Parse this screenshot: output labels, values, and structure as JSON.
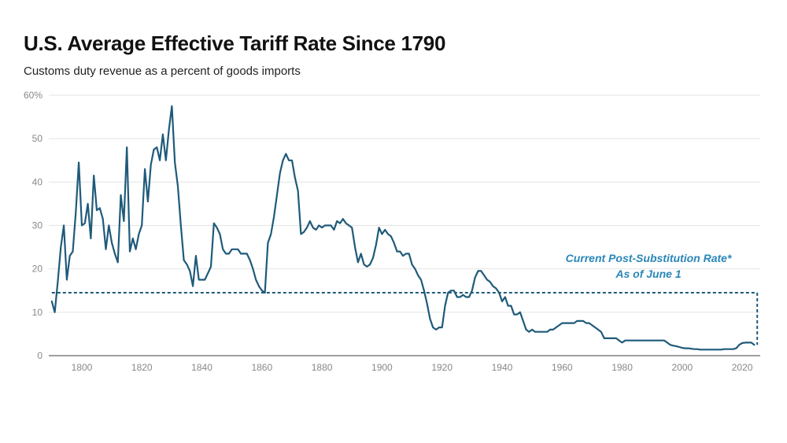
{
  "chart_data": {
    "type": "line",
    "title": "U.S. Average Effective Tariff Rate Since 1790",
    "subtitle": "Customs duty revenue as a percent of goods imports",
    "xlabel": "",
    "ylabel": "",
    "xlim": [
      1789,
      2026
    ],
    "ylim": [
      0,
      60
    ],
    "grid": true,
    "y_ticks": [
      0,
      10,
      20,
      30,
      40,
      50,
      60
    ],
    "y_tick_labels": [
      "0",
      "10",
      "20",
      "30",
      "40",
      "50",
      "60%"
    ],
    "x_ticks": [
      1800,
      1820,
      1840,
      1860,
      1880,
      1900,
      1920,
      1940,
      1960,
      1980,
      2000,
      2020
    ],
    "x_tick_labels": [
      "1800",
      "1820",
      "1840",
      "1860",
      "1880",
      "1900",
      "1920",
      "1940",
      "1960",
      "1980",
      "2000",
      "2020"
    ],
    "series": [
      {
        "name": "Average effective tariff rate",
        "color": "#1f5a7a",
        "points": [
          [
            1790,
            12.5
          ],
          [
            1791,
            10
          ],
          [
            1792,
            17
          ],
          [
            1793,
            25
          ],
          [
            1794,
            30
          ],
          [
            1795,
            17.5
          ],
          [
            1796,
            23
          ],
          [
            1797,
            24
          ],
          [
            1798,
            33
          ],
          [
            1799,
            44.5
          ],
          [
            1800,
            30
          ],
          [
            1801,
            30.5
          ],
          [
            1802,
            35
          ],
          [
            1803,
            27
          ],
          [
            1804,
            41.5
          ],
          [
            1805,
            33.5
          ],
          [
            1806,
            34
          ],
          [
            1807,
            31.5
          ],
          [
            1808,
            24.5
          ],
          [
            1809,
            30
          ],
          [
            1810,
            26
          ],
          [
            1811,
            23.5
          ],
          [
            1812,
            21.5
          ],
          [
            1813,
            37
          ],
          [
            1814,
            31
          ],
          [
            1815,
            48
          ],
          [
            1816,
            24
          ],
          [
            1817,
            27
          ],
          [
            1818,
            24.5
          ],
          [
            1819,
            28
          ],
          [
            1820,
            30
          ],
          [
            1821,
            43
          ],
          [
            1822,
            35.5
          ],
          [
            1823,
            44
          ],
          [
            1824,
            47.5
          ],
          [
            1825,
            48
          ],
          [
            1826,
            45
          ],
          [
            1827,
            51
          ],
          [
            1828,
            45
          ],
          [
            1829,
            52
          ],
          [
            1830,
            57.5
          ],
          [
            1831,
            44.5
          ],
          [
            1832,
            39
          ],
          [
            1833,
            30
          ],
          [
            1834,
            22
          ],
          [
            1835,
            21
          ],
          [
            1836,
            19.5
          ],
          [
            1837,
            16
          ],
          [
            1838,
            23
          ],
          [
            1839,
            17.5
          ],
          [
            1840,
            17.5
          ],
          [
            1841,
            17.5
          ],
          [
            1842,
            19
          ],
          [
            1843,
            20.5
          ],
          [
            1844,
            30.5
          ],
          [
            1845,
            29.5
          ],
          [
            1846,
            28
          ],
          [
            1847,
            24.5
          ],
          [
            1848,
            23.5
          ],
          [
            1849,
            23.5
          ],
          [
            1850,
            24.5
          ],
          [
            1851,
            24.5
          ],
          [
            1852,
            24.5
          ],
          [
            1853,
            23.5
          ],
          [
            1854,
            23.5
          ],
          [
            1855,
            23.5
          ],
          [
            1856,
            22
          ],
          [
            1857,
            20
          ],
          [
            1858,
            17.5
          ],
          [
            1859,
            16
          ],
          [
            1860,
            15
          ],
          [
            1861,
            14.5
          ],
          [
            1862,
            26
          ],
          [
            1863,
            28
          ],
          [
            1864,
            32
          ],
          [
            1865,
            37
          ],
          [
            1866,
            42
          ],
          [
            1867,
            45
          ],
          [
            1868,
            46.5
          ],
          [
            1869,
            45
          ],
          [
            1870,
            45
          ],
          [
            1871,
            41
          ],
          [
            1872,
            38
          ],
          [
            1873,
            28
          ],
          [
            1874,
            28.5
          ],
          [
            1875,
            29.5
          ],
          [
            1876,
            31
          ],
          [
            1877,
            29.5
          ],
          [
            1878,
            29
          ],
          [
            1879,
            30
          ],
          [
            1880,
            29.5
          ],
          [
            1881,
            30
          ],
          [
            1882,
            30
          ],
          [
            1883,
            30
          ],
          [
            1884,
            29
          ],
          [
            1885,
            31
          ],
          [
            1886,
            30.5
          ],
          [
            1887,
            31.5
          ],
          [
            1888,
            30.5
          ],
          [
            1889,
            30
          ],
          [
            1890,
            29.5
          ],
          [
            1891,
            25
          ],
          [
            1892,
            21.5
          ],
          [
            1893,
            23.5
          ],
          [
            1894,
            21
          ],
          [
            1895,
            20.5
          ],
          [
            1896,
            21
          ],
          [
            1897,
            22.5
          ],
          [
            1898,
            25.5
          ],
          [
            1899,
            29.5
          ],
          [
            1900,
            28
          ],
          [
            1901,
            29
          ],
          [
            1902,
            28
          ],
          [
            1903,
            27.5
          ],
          [
            1904,
            26
          ],
          [
            1905,
            24
          ],
          [
            1906,
            24
          ],
          [
            1907,
            23
          ],
          [
            1908,
            23.5
          ],
          [
            1909,
            23.5
          ],
          [
            1910,
            21
          ],
          [
            1911,
            20
          ],
          [
            1912,
            18.5
          ],
          [
            1913,
            17.5
          ],
          [
            1914,
            15
          ],
          [
            1915,
            12
          ],
          [
            1916,
            8.5
          ],
          [
            1917,
            6.5
          ],
          [
            1918,
            6
          ],
          [
            1919,
            6.5
          ],
          [
            1920,
            6.5
          ],
          [
            1921,
            11.5
          ],
          [
            1922,
            14.5
          ],
          [
            1923,
            15
          ],
          [
            1924,
            15
          ],
          [
            1925,
            13.5
          ],
          [
            1926,
            13.5
          ],
          [
            1927,
            14
          ],
          [
            1928,
            13.5
          ],
          [
            1929,
            13.5
          ],
          [
            1930,
            15
          ],
          [
            1931,
            18
          ],
          [
            1932,
            19.5
          ],
          [
            1933,
            19.5
          ],
          [
            1934,
            18.5
          ],
          [
            1935,
            17.5
          ],
          [
            1936,
            17
          ],
          [
            1937,
            16
          ],
          [
            1938,
            15.5
          ],
          [
            1939,
            14.5
          ],
          [
            1940,
            12.5
          ],
          [
            1941,
            13.5
          ],
          [
            1942,
            11.5
          ],
          [
            1943,
            11.5
          ],
          [
            1944,
            9.5
          ],
          [
            1945,
            9.5
          ],
          [
            1946,
            10
          ],
          [
            1947,
            8
          ],
          [
            1948,
            6
          ],
          [
            1949,
            5.5
          ],
          [
            1950,
            6
          ],
          [
            1951,
            5.5
          ],
          [
            1952,
            5.5
          ],
          [
            1953,
            5.5
          ],
          [
            1954,
            5.5
          ],
          [
            1955,
            5.5
          ],
          [
            1956,
            6
          ],
          [
            1957,
            6
          ],
          [
            1958,
            6.5
          ],
          [
            1959,
            7
          ],
          [
            1960,
            7.5
          ],
          [
            1961,
            7.5
          ],
          [
            1962,
            7.5
          ],
          [
            1963,
            7.5
          ],
          [
            1964,
            7.5
          ],
          [
            1965,
            8
          ],
          [
            1966,
            8
          ],
          [
            1967,
            8
          ],
          [
            1968,
            7.5
          ],
          [
            1969,
            7.5
          ],
          [
            1970,
            7
          ],
          [
            1971,
            6.5
          ],
          [
            1972,
            6
          ],
          [
            1973,
            5.5
          ],
          [
            1974,
            4
          ],
          [
            1975,
            4
          ],
          [
            1976,
            4
          ],
          [
            1977,
            4
          ],
          [
            1978,
            4
          ],
          [
            1979,
            3.5
          ],
          [
            1980,
            3
          ],
          [
            1981,
            3.5
          ],
          [
            1982,
            3.5
          ],
          [
            1983,
            3.5
          ],
          [
            1984,
            3.5
          ],
          [
            1985,
            3.5
          ],
          [
            1986,
            3.5
          ],
          [
            1987,
            3.5
          ],
          [
            1988,
            3.5
          ],
          [
            1989,
            3.5
          ],
          [
            1990,
            3.5
          ],
          [
            1991,
            3.5
          ],
          [
            1992,
            3.5
          ],
          [
            1993,
            3.5
          ],
          [
            1994,
            3.5
          ],
          [
            1995,
            3
          ],
          [
            1996,
            2.5
          ],
          [
            1997,
            2.3
          ],
          [
            1998,
            2.2
          ],
          [
            1999,
            2
          ],
          [
            2000,
            1.8
          ],
          [
            2001,
            1.7
          ],
          [
            2002,
            1.7
          ],
          [
            2003,
            1.6
          ],
          [
            2004,
            1.5
          ],
          [
            2005,
            1.5
          ],
          [
            2006,
            1.4
          ],
          [
            2007,
            1.4
          ],
          [
            2008,
            1.4
          ],
          [
            2009,
            1.4
          ],
          [
            2010,
            1.4
          ],
          [
            2011,
            1.4
          ],
          [
            2012,
            1.4
          ],
          [
            2013,
            1.4
          ],
          [
            2014,
            1.5
          ],
          [
            2015,
            1.5
          ],
          [
            2016,
            1.5
          ],
          [
            2017,
            1.5
          ],
          [
            2018,
            1.7
          ],
          [
            2019,
            2.5
          ],
          [
            2020,
            2.9
          ],
          [
            2021,
            3
          ],
          [
            2022,
            3
          ],
          [
            2023,
            3
          ],
          [
            2024,
            2.5
          ]
        ]
      }
    ],
    "reference_line": {
      "label_line1": "Current Post-Substitution Rate*",
      "label_line2": "As of June 1",
      "value": 14.5,
      "start_year": 1790,
      "end_year": 2025,
      "drop_to": 2.5,
      "color": "#1f5a7a",
      "label_color": "#2a86b8"
    }
  }
}
